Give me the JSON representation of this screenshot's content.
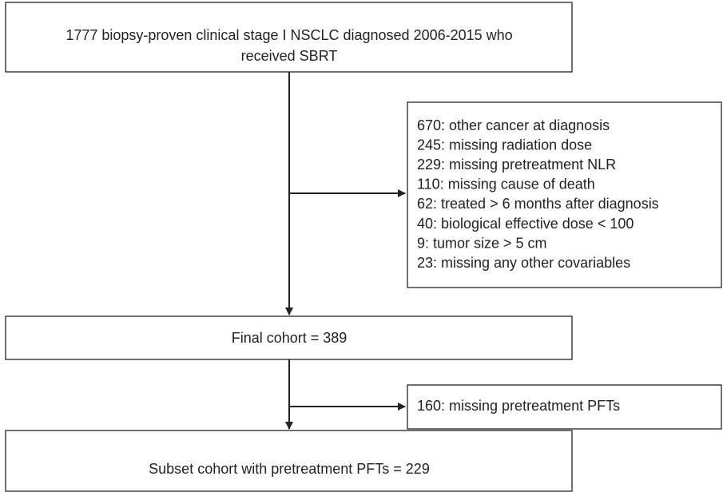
{
  "boxes": {
    "source": {
      "lines": [
        "1777 biopsy-proven clinical stage I NSCLC diagnosed 2006-2015 who",
        "received SBRT"
      ]
    },
    "exclusions_1": {
      "lines": [
        "670: other cancer at diagnosis",
        "245: missing radiation dose",
        "229: missing pretreatment NLR",
        "110: missing cause of death",
        "62: treated > 6 months after diagnosis",
        "40: biological effective dose < 100",
        "9: tumor size > 5 cm",
        "23: missing any other covariables"
      ]
    },
    "final": {
      "label": "Final cohort = 389"
    },
    "exclusions_2": {
      "label": "160: missing pretreatment PFTs"
    },
    "subset": {
      "label": "Subset cohort with pretreatment PFTs = 229"
    }
  }
}
